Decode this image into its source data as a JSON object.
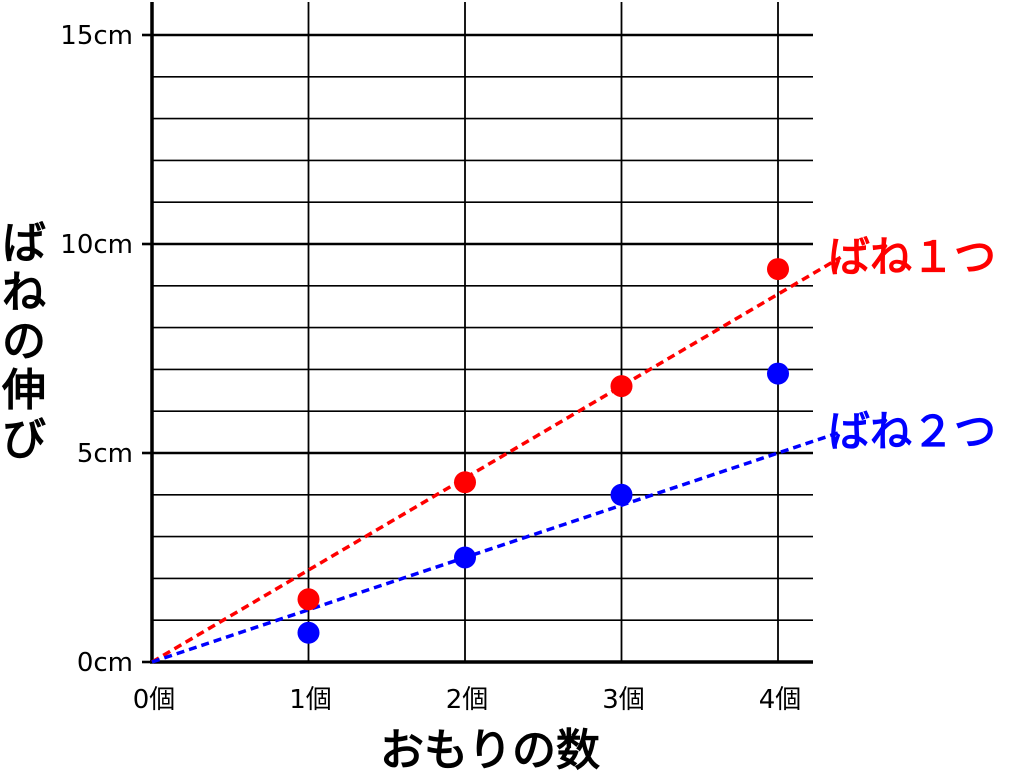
{
  "chart_data": {
    "type": "scatter",
    "xlabel": "おもりの数",
    "ylabel": "ばねの伸び",
    "x_ticks": [
      "0個",
      "1個",
      "2個",
      "3個",
      "4個"
    ],
    "y_ticks": [
      "0cm",
      "5cm",
      "10cm",
      "15cm"
    ],
    "x_values": [
      0,
      1,
      2,
      3,
      4
    ],
    "y_tick_values": [
      0,
      5,
      10,
      15
    ],
    "xlim": [
      0,
      4.2
    ],
    "ylim": [
      0,
      15
    ],
    "minor_grid_step": 1,
    "grid": true,
    "series": [
      {
        "name": "ばね１つ",
        "color": "#ff0000",
        "points": [
          [
            1,
            1.5
          ],
          [
            2,
            4.3
          ],
          [
            3,
            6.6
          ],
          [
            4,
            9.4
          ]
        ],
        "trend": {
          "slope": 2.2,
          "intercept": 0,
          "x_end": 4.4
        }
      },
      {
        "name": "ばね２つ",
        "color": "#0000ff",
        "points": [
          [
            1,
            0.7
          ],
          [
            2,
            2.5
          ],
          [
            3,
            4.0
          ],
          [
            4,
            6.9
          ]
        ],
        "trend": {
          "slope": 1.25,
          "intercept": 0,
          "x_end": 4.4
        }
      }
    ]
  }
}
